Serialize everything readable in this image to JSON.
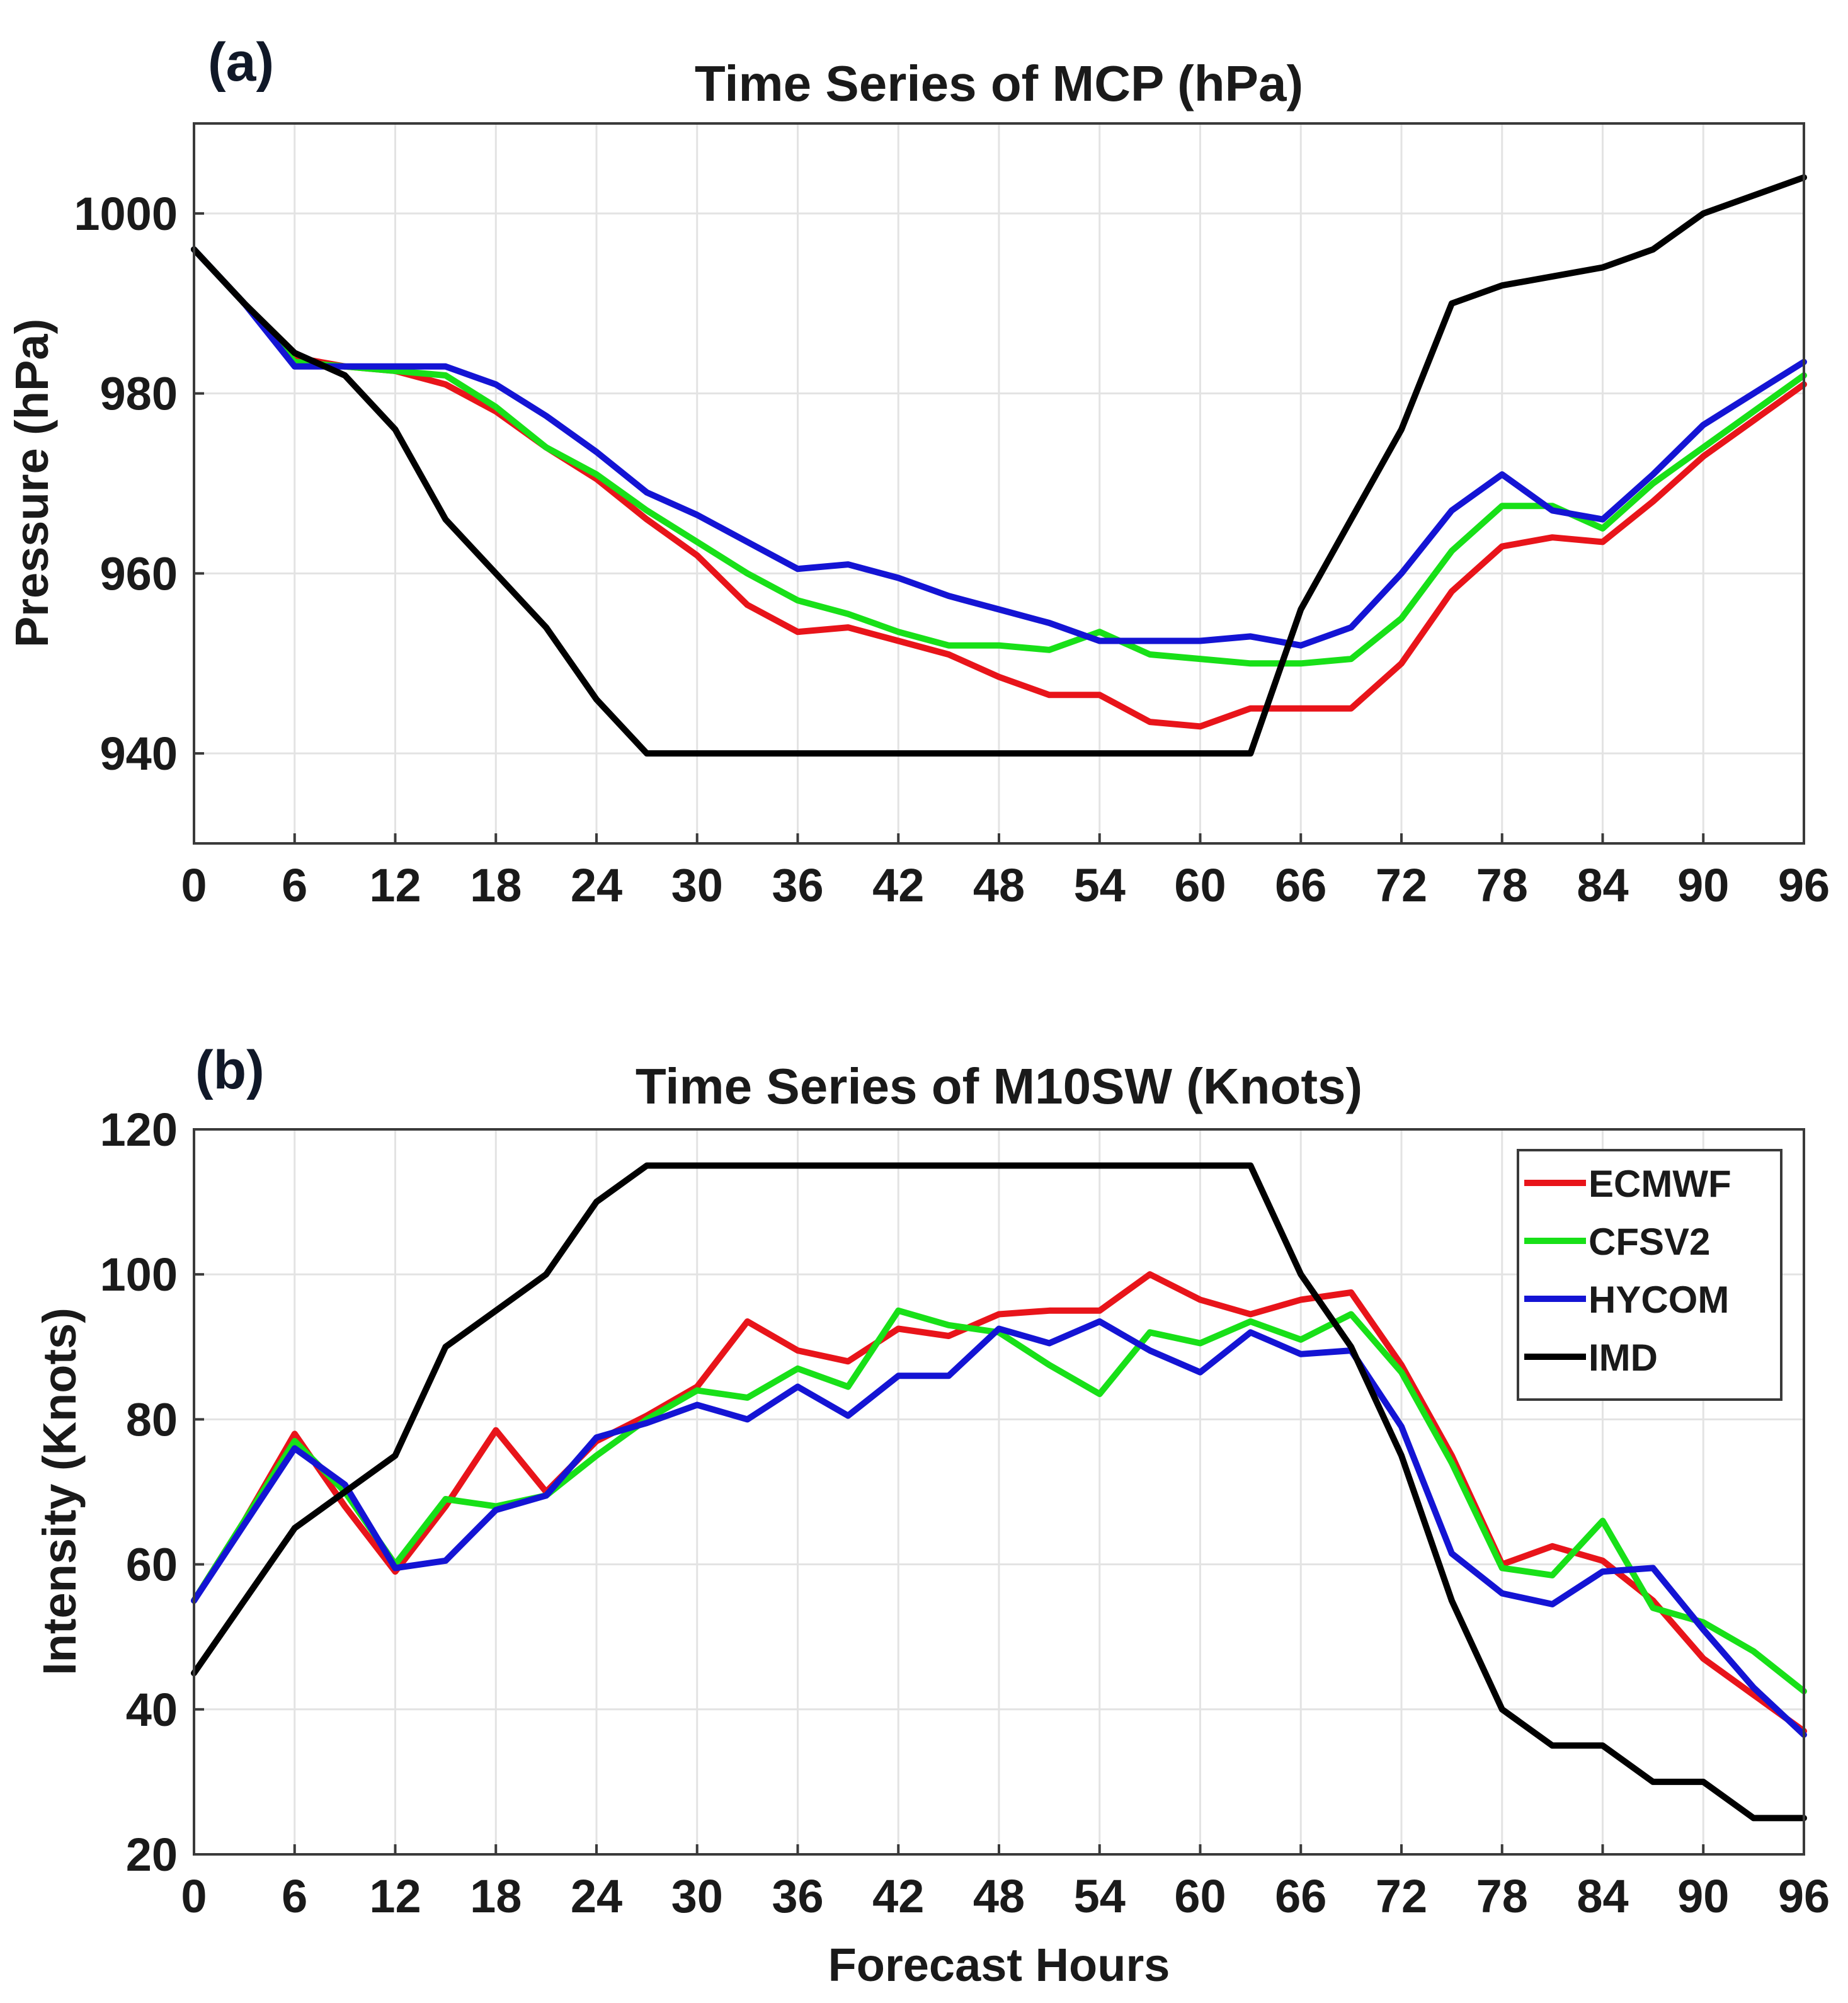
{
  "colors": {
    "ECMWF": "#e8141a",
    "CFSV2": "#18e018",
    "HYCOM": "#1414d4",
    "IMD": "#000000"
  },
  "chart_data": [
    {
      "type": "line",
      "panel_label": "(a)",
      "title": "Time Series of MCP (hPa)",
      "xlabel": "",
      "ylabel": "Pressure (hPa)",
      "xlim": [
        0,
        96
      ],
      "ylim": [
        930,
        1010
      ],
      "xticks": [
        0,
        6,
        12,
        18,
        24,
        30,
        36,
        42,
        48,
        54,
        60,
        66,
        72,
        78,
        84,
        90,
        96
      ],
      "yticks": [
        940,
        960,
        980,
        1000
      ],
      "grid": true,
      "x": [
        0,
        3,
        6,
        9,
        12,
        15,
        18,
        21,
        24,
        27,
        30,
        33,
        36,
        39,
        42,
        45,
        48,
        51,
        54,
        57,
        60,
        63,
        66,
        69,
        72,
        75,
        78,
        81,
        84,
        87,
        90,
        93,
        96
      ],
      "series": [
        {
          "name": "ECMWF",
          "values": [
            996,
            990,
            984,
            983,
            982.5,
            981,
            978,
            974,
            970.5,
            966,
            962,
            956.5,
            953.5,
            954,
            952.5,
            951,
            948.5,
            946.5,
            946.5,
            943.5,
            943,
            945,
            945,
            945,
            950,
            958,
            963,
            964,
            963.5,
            968,
            973,
            977,
            981
          ]
        },
        {
          "name": "CFSV2",
          "values": [
            996,
            990,
            983.5,
            983,
            982.5,
            982,
            978.5,
            974,
            971,
            967,
            963.5,
            960,
            957,
            955.5,
            953.5,
            952,
            952,
            951.5,
            953.5,
            951,
            950.5,
            950,
            950,
            950.5,
            955,
            962.5,
            967.5,
            967.5,
            965,
            970,
            974,
            978,
            982
          ]
        },
        {
          "name": "HYCOM",
          "values": [
            996,
            990,
            983,
            983,
            983,
            983,
            981,
            977.5,
            973.5,
            969,
            966.5,
            963.5,
            960.5,
            961,
            959.5,
            957.5,
            956,
            954.5,
            952.5,
            952.5,
            952.5,
            953,
            952,
            954,
            960,
            967,
            971,
            967,
            966,
            971,
            976.5,
            980,
            983.5
          ]
        },
        {
          "name": "IMD",
          "values": [
            996,
            990,
            984.5,
            982,
            976,
            966,
            960,
            954,
            946,
            940,
            940,
            940,
            940,
            940,
            940,
            940,
            940,
            940,
            940,
            940,
            940,
            940,
            956,
            966,
            976,
            990,
            992,
            993,
            994,
            996,
            1000,
            1002,
            1004
          ]
        }
      ]
    },
    {
      "type": "line",
      "panel_label": "(b)",
      "title": "Time Series of M10SW (Knots)",
      "xlabel": "Forecast Hours",
      "ylabel": "Intensity (Knots)",
      "xlim": [
        0,
        96
      ],
      "ylim": [
        20,
        120
      ],
      "xticks": [
        0,
        6,
        12,
        18,
        24,
        30,
        36,
        42,
        48,
        54,
        60,
        66,
        72,
        78,
        84,
        90,
        96
      ],
      "yticks": [
        20,
        40,
        60,
        80,
        100,
        120
      ],
      "grid": true,
      "legend_position": "top-right",
      "x": [
        0,
        3,
        6,
        9,
        12,
        15,
        18,
        21,
        24,
        27,
        30,
        33,
        36,
        39,
        42,
        45,
        48,
        51,
        54,
        57,
        60,
        63,
        66,
        69,
        72,
        75,
        78,
        81,
        84,
        87,
        90,
        93,
        96
      ],
      "series": [
        {
          "name": "ECMWF",
          "values": [
            55,
            66,
            78,
            68,
            59,
            68,
            78.5,
            70,
            77,
            80.5,
            84.5,
            93.5,
            89.5,
            88,
            92.5,
            91.5,
            94.5,
            95,
            95,
            100,
            96.5,
            94.5,
            96.5,
            97.5,
            87.5,
            75,
            60,
            62.5,
            60.5,
            55,
            47,
            42,
            37
          ]
        },
        {
          "name": "CFSV2",
          "values": [
            55,
            66,
            77,
            70,
            60,
            69,
            68,
            69.5,
            75,
            80,
            84,
            83,
            87,
            84.5,
            95,
            93,
            92,
            87.5,
            83.5,
            92,
            90.5,
            93.5,
            91,
            94.5,
            86.5,
            74,
            59.5,
            58.5,
            66,
            54,
            52,
            48,
            42.5
          ]
        },
        {
          "name": "HYCOM",
          "values": [
            55,
            65.5,
            76,
            71,
            59.5,
            60.5,
            67.5,
            69.5,
            77.5,
            79.5,
            82,
            80,
            84.5,
            80.5,
            86,
            86,
            92.5,
            90.5,
            93.5,
            89.5,
            86.5,
            92,
            89,
            89.5,
            79,
            61.5,
            56,
            54.5,
            59,
            59.5,
            51,
            43,
            36.5
          ]
        },
        {
          "name": "IMD",
          "values": [
            45,
            55,
            65,
            70,
            75,
            90,
            95,
            100,
            110,
            115,
            115,
            115,
            115,
            115,
            115,
            115,
            115,
            115,
            115,
            115,
            115,
            115,
            100,
            90,
            75,
            55,
            40,
            35,
            35,
            30,
            30,
            25,
            25
          ]
        }
      ]
    }
  ]
}
